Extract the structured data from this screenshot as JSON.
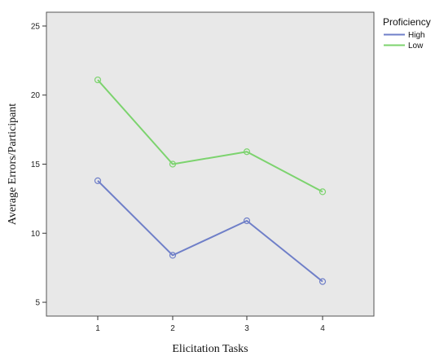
{
  "chart_data": {
    "type": "line",
    "xlabel": "Elicitation Tasks",
    "ylabel": "Average Errors/Participant",
    "categories": [
      "1",
      "2",
      "3",
      "4"
    ],
    "ylim": [
      4,
      26
    ],
    "yticks": [
      5,
      10,
      15,
      20,
      25
    ],
    "grid": false,
    "background": "#e8e8e8",
    "legend": {
      "title": "Proficiency",
      "position": "top-right"
    },
    "series": [
      {
        "name": "High",
        "color": "#6f7fc8",
        "values": [
          13.8,
          8.4,
          10.9,
          6.5
        ]
      },
      {
        "name": "Low",
        "color": "#7cd36e",
        "values": [
          21.1,
          15.0,
          15.9,
          13.0
        ]
      }
    ]
  }
}
